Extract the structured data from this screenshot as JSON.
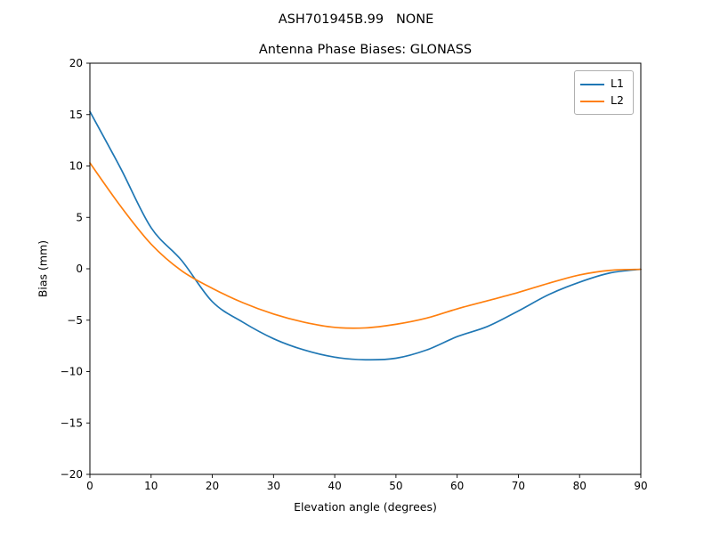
{
  "figure": {
    "suptitle": "ASH701945B.99   NONE",
    "background": "#ffffff"
  },
  "chart_data": {
    "type": "line",
    "title": "Antenna Phase Biases: GLONASS",
    "xlabel": "Elevation angle (degrees)",
    "ylabel": "Bias (mm)",
    "xlim": [
      0,
      90
    ],
    "ylim": [
      -20,
      20
    ],
    "xticks": [
      0,
      10,
      20,
      30,
      40,
      50,
      60,
      70,
      80,
      90
    ],
    "yticks": [
      -20,
      -15,
      -10,
      -5,
      0,
      5,
      10,
      15,
      20
    ],
    "grid": false,
    "legend_position": "upper right",
    "x": [
      0,
      5,
      10,
      15,
      20,
      25,
      30,
      35,
      40,
      45,
      50,
      55,
      60,
      65,
      70,
      75,
      80,
      85,
      90
    ],
    "series": [
      {
        "name": "L1",
        "color": "#1f77b4",
        "values": [
          15.3,
          9.8,
          4.0,
          0.8,
          -3.2,
          -5.2,
          -6.8,
          -7.9,
          -8.6,
          -8.85,
          -8.7,
          -7.9,
          -6.6,
          -5.6,
          -4.1,
          -2.5,
          -1.3,
          -0.4,
          -0.05
        ]
      },
      {
        "name": "L2",
        "color": "#ff7f0e",
        "values": [
          10.3,
          6.1,
          2.4,
          -0.2,
          -1.9,
          -3.3,
          -4.4,
          -5.2,
          -5.7,
          -5.75,
          -5.4,
          -4.8,
          -3.9,
          -3.1,
          -2.3,
          -1.4,
          -0.6,
          -0.15,
          -0.05
        ]
      }
    ]
  }
}
